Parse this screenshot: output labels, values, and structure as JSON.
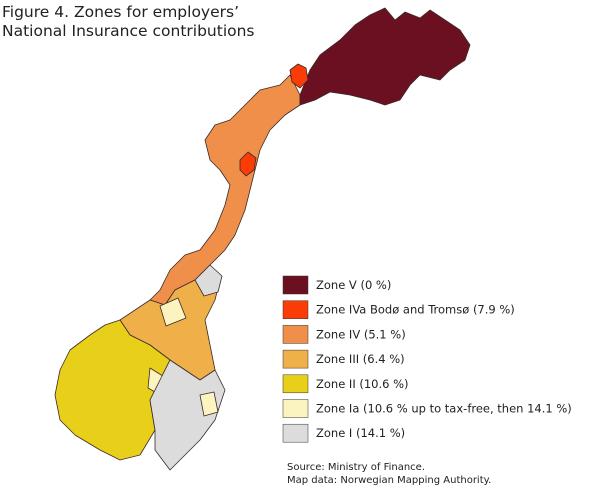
{
  "title": [
    "Figure 4. Zones for employers’",
    "National Insurance contributions"
  ],
  "legend": [
    {
      "label": "Zone V (0 %)",
      "color": "#6b1020"
    },
    {
      "label": "Zone IVa Bodø and Tromsø (7.9 %)",
      "color": "#fb3c06"
    },
    {
      "label": "Zone IV (5.1 %)",
      "color": "#ef8f4a"
    },
    {
      "label": "Zone III (6.4 %)",
      "color": "#efb04a"
    },
    {
      "label": "Zone II (10.6 %)",
      "color": "#e8cf1a"
    },
    {
      "label": "Zone Ia (10.6 % up to tax-free, then 14.1 %)",
      "color": "#fbf4c0"
    },
    {
      "label": "Zone I (14.1 %)",
      "color": "#dcdcdc"
    }
  ],
  "source": [
    "Source: Ministry of Finance.",
    "Map data: Norwegian Mapping Authority."
  ]
}
